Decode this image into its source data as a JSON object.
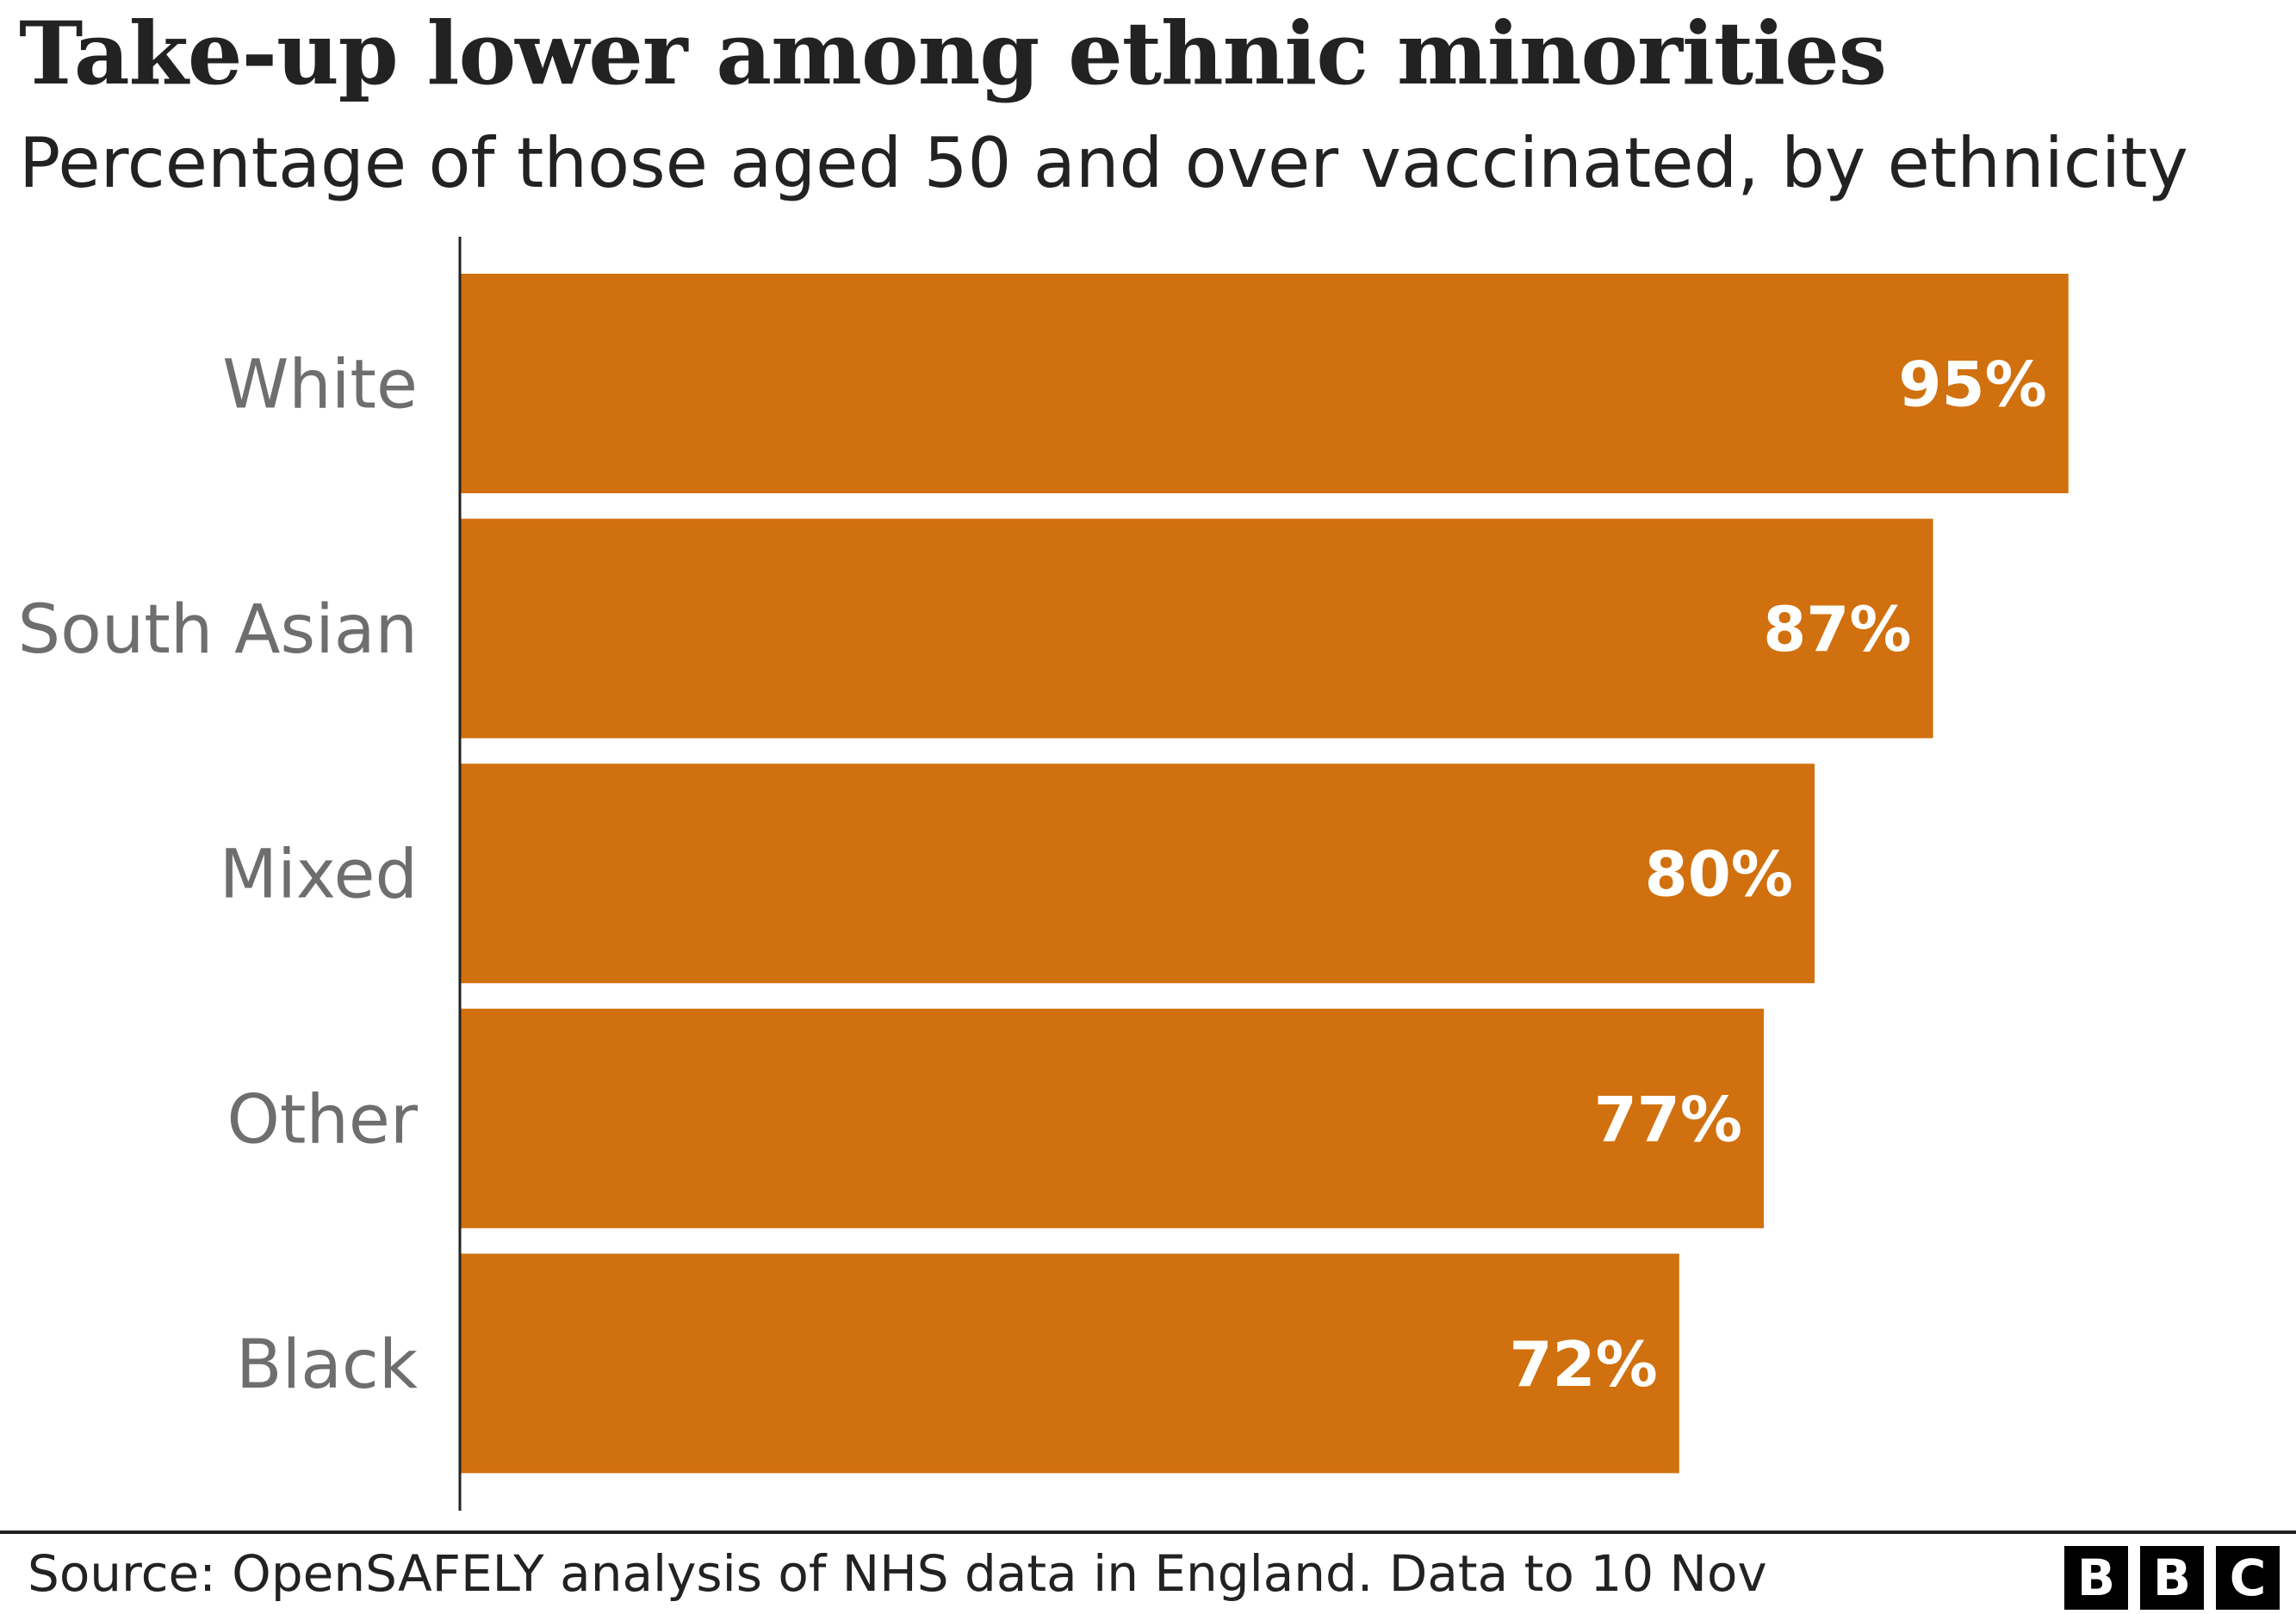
{
  "chart_data": {
    "type": "bar",
    "orientation": "horizontal",
    "title": "Take-up lower among ethnic minorities",
    "subtitle": "Percentage of those aged 50 and over vaccinated, by ethnicity",
    "categories": [
      "White",
      "South Asian",
      "Mixed",
      "Other",
      "Black"
    ],
    "values": [
      95,
      87,
      80,
      77,
      72
    ],
    "value_labels": [
      "95%",
      "87%",
      "80%",
      "77%",
      "72%"
    ],
    "units": "%",
    "xlim": [
      0,
      100
    ],
    "xlabel": "",
    "ylabel": "",
    "grid": false,
    "legend": "none",
    "bar_color": "#d1700e",
    "value_label_color": "#ffffff",
    "category_label_color": "#6e6e6e"
  },
  "footer": {
    "source": "Source: OpenSAFELY analysis of NHS data in England. Data to 10 Nov",
    "logo_letters": [
      "B",
      "B",
      "C"
    ]
  }
}
